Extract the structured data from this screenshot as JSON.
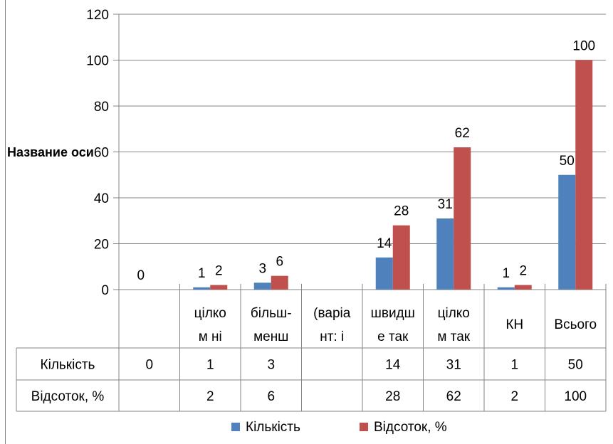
{
  "chart_data": {
    "type": "bar",
    "ylabel": "Название оси",
    "ylim": [
      0,
      120
    ],
    "yticks": [
      0,
      20,
      40,
      60,
      80,
      100,
      120
    ],
    "grid": true,
    "legend_position": "bottom",
    "categories": [
      [
        "",
        ""
      ],
      [
        "цілко",
        "м ні"
      ],
      [
        "більш-",
        "менш"
      ],
      [
        "(варіа",
        "нт:  і"
      ],
      [
        "швидш",
        "е так"
      ],
      [
        "цілко",
        "м так"
      ],
      [
        "КН",
        ""
      ],
      [
        "Всього",
        ""
      ]
    ],
    "series": [
      {
        "name": "Кількість",
        "color": "#4f81bd",
        "values": [
          0,
          1,
          3,
          null,
          14,
          31,
          1,
          50
        ]
      },
      {
        "name": "Відсоток, %",
        "color": "#c0504d",
        "values": [
          null,
          2,
          6,
          null,
          28,
          62,
          2,
          100
        ]
      }
    ],
    "data_labels": [
      [
        "0",
        "1",
        "3",
        "",
        "14",
        "31",
        "1",
        "50"
      ],
      [
        "",
        "2",
        "6",
        "",
        "28",
        "62",
        "2",
        "100"
      ]
    ],
    "table_rows": [
      {
        "label": "Кількість",
        "cells": [
          "0",
          "1",
          "3",
          "",
          "14",
          "31",
          "1",
          "50"
        ]
      },
      {
        "label": "Відсоток, %",
        "cells": [
          "",
          "2",
          "6",
          "",
          "28",
          "62",
          "2",
          "100"
        ]
      }
    ]
  }
}
